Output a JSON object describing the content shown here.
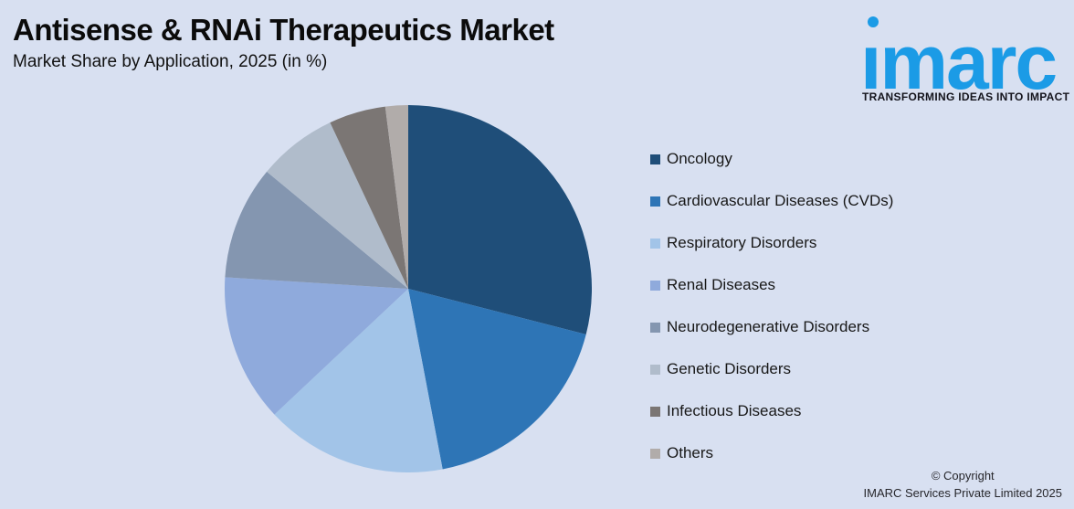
{
  "header": {
    "title": "Antisense & RNAi Therapeutics Market",
    "subtitle": "Market Share by Application, 2025 (in %)"
  },
  "logo": {
    "wordmark": "imarc",
    "tagline": "TRANSFORMING IDEAS INTO IMPACT",
    "brand_blue": "#1B9BE6"
  },
  "colors": {
    "background": "#D8E0F1",
    "text": "#111111"
  },
  "chart_data": {
    "type": "pie",
    "title": "Antisense & RNAi Therapeutics Market",
    "subtitle": "Market Share by Application, 2025 (in %)",
    "unit": "%",
    "start_angle_deg": 0,
    "direction": "clockwise",
    "legend_position": "right",
    "data_labels_shown": false,
    "categories": [
      "Oncology",
      "Cardiovascular Diseases (CVDs)",
      "Respiratory Disorders",
      "Renal Diseases",
      "Neurodegenerative Disorders",
      "Genetic Disorders",
      "Infectious Diseases",
      "Others"
    ],
    "values": [
      29,
      18,
      16,
      13,
      10,
      7,
      5,
      2
    ],
    "colors": [
      "#1F4E79",
      "#2E75B6",
      "#A2C4E8",
      "#8FAADC",
      "#8496B0",
      "#B0BCCB",
      "#7B7674",
      "#B1ACAA"
    ]
  },
  "footer": {
    "copyright_line1": "© Copyright",
    "copyright_line2": "IMARC Services Private Limited 2025"
  }
}
